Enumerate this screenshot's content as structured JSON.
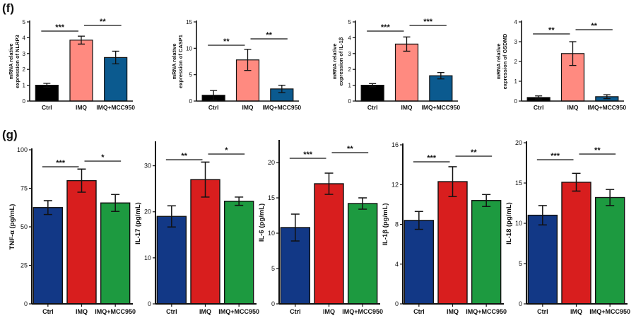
{
  "figure": {
    "panel_f_label": "(f)",
    "panel_g_label": "(g)"
  },
  "colors": {
    "ctrl_f": "#000000",
    "imq_f": "#ff8a80",
    "mcc_f": "#0b5a8f",
    "ctrl_g": "#123886",
    "imq_g": "#d81e1e",
    "mcc_g": "#1d9a40"
  },
  "chart_data": [
    {
      "type": "bar",
      "categories": [
        "Ctrl",
        "IMQ",
        "IMQ+MCC950"
      ],
      "values": [
        1.0,
        3.85,
        2.75
      ],
      "errors": [
        0.12,
        0.25,
        0.4
      ],
      "ylabel": "mRNA relative expression of NLRP3",
      "ylim": [
        0,
        5
      ],
      "yticks": [
        0,
        1,
        2,
        3,
        4,
        5
      ],
      "significance": [
        {
          "from": 0,
          "to": 1,
          "label": "***"
        },
        {
          "from": 1,
          "to": 2,
          "label": "**"
        }
      ]
    },
    {
      "type": "bar",
      "categories": [
        "Ctrl",
        "IMQ",
        "IMQ+MCC950"
      ],
      "values": [
        1.1,
        7.8,
        2.3
      ],
      "errors": [
        0.9,
        2.0,
        0.7
      ],
      "ylabel": "mRNA relative expression of CASP1",
      "ylim": [
        0,
        15
      ],
      "yticks": [
        0,
        5,
        10,
        15
      ],
      "significance": [
        {
          "from": 0,
          "to": 1,
          "label": "**"
        },
        {
          "from": 1,
          "to": 2,
          "label": "**"
        }
      ]
    },
    {
      "type": "bar",
      "categories": [
        "Ctrl",
        "IMQ",
        "IMQ+MCC950"
      ],
      "values": [
        1.0,
        3.6,
        1.6
      ],
      "errors": [
        0.1,
        0.45,
        0.2
      ],
      "ylabel": "mRNA relative expression of IL-1β",
      "ylim": [
        0,
        5
      ],
      "yticks": [
        0,
        1,
        2,
        3,
        4,
        5
      ],
      "significance": [
        {
          "from": 0,
          "to": 1,
          "label": "***"
        },
        {
          "from": 1,
          "to": 2,
          "label": "***"
        }
      ]
    },
    {
      "type": "bar",
      "categories": [
        "Ctrl",
        "IMQ",
        "IMQ+MCC950"
      ],
      "values": [
        0.18,
        2.4,
        0.22
      ],
      "errors": [
        0.08,
        0.6,
        0.1
      ],
      "ylabel": "mRNA relative expression of GSDMD",
      "ylim": [
        0,
        4
      ],
      "yticks": [
        0,
        1,
        2,
        3,
        4
      ],
      "significance": [
        {
          "from": 0,
          "to": 1,
          "label": "**"
        },
        {
          "from": 1,
          "to": 2,
          "label": "**"
        }
      ]
    },
    {
      "type": "bar",
      "categories": [
        "Ctrl",
        "IMQ",
        "IMQ+MCC950"
      ],
      "values": [
        62.5,
        80.0,
        65.5
      ],
      "errors": [
        4.5,
        7.5,
        5.5
      ],
      "ylabel": "TNF-α (pg/mL)",
      "ylim": [
        0,
        100
      ],
      "yticks": [
        0,
        25,
        50,
        75,
        100
      ],
      "significance": [
        {
          "from": 0,
          "to": 1,
          "label": "***"
        },
        {
          "from": 1,
          "to": 2,
          "label": "*"
        }
      ]
    },
    {
      "type": "bar",
      "categories": [
        "Ctrl",
        "IMQ",
        "IMQ+MCC950"
      ],
      "values": [
        19.0,
        27.0,
        22.3
      ],
      "errors": [
        2.3,
        3.8,
        0.9
      ],
      "ylabel": "IL-17 (pg/mL)",
      "ylim": [
        0,
        35
      ],
      "yticks": [
        0,
        10,
        20,
        30
      ],
      "significance": [
        {
          "from": 0,
          "to": 1,
          "label": "**"
        },
        {
          "from": 1,
          "to": 2,
          "label": "*"
        }
      ]
    },
    {
      "type": "bar",
      "categories": [
        "Ctrl",
        "IMQ",
        "IMQ+MCC950"
      ],
      "values": [
        10.8,
        17.0,
        14.2
      ],
      "errors": [
        1.9,
        1.5,
        0.8
      ],
      "ylabel": "IL-6 (pg/mL)",
      "ylim": [
        0,
        23
      ],
      "yticks": [
        0,
        5,
        10,
        15,
        20
      ],
      "significance": [
        {
          "from": 0,
          "to": 1,
          "label": "***"
        },
        {
          "from": 1,
          "to": 2,
          "label": "**"
        }
      ]
    },
    {
      "type": "bar",
      "categories": [
        "Ctrl",
        "IMQ",
        "IMQ+MCC950"
      ],
      "values": [
        8.4,
        12.3,
        10.4
      ],
      "errors": [
        0.9,
        1.5,
        0.6
      ],
      "ylabel": "IL-1β (pg/mL)",
      "ylim": [
        0,
        16
      ],
      "yticks": [
        0,
        4,
        8,
        12,
        16
      ],
      "significance": [
        {
          "from": 0,
          "to": 1,
          "label": "***"
        },
        {
          "from": 1,
          "to": 2,
          "label": "**"
        }
      ]
    },
    {
      "type": "bar",
      "categories": [
        "Ctrl",
        "IMQ",
        "IMQ+MCC950"
      ],
      "values": [
        11.0,
        15.1,
        13.2
      ],
      "errors": [
        1.2,
        1.1,
        1.0
      ],
      "ylabel": "IL-18 (pg/mL)",
      "ylim": [
        0,
        20
      ],
      "yticks": [
        0,
        5,
        10,
        15,
        20
      ],
      "significance": [
        {
          "from": 0,
          "to": 1,
          "label": "***"
        },
        {
          "from": 1,
          "to": 2,
          "label": "**"
        }
      ]
    }
  ]
}
